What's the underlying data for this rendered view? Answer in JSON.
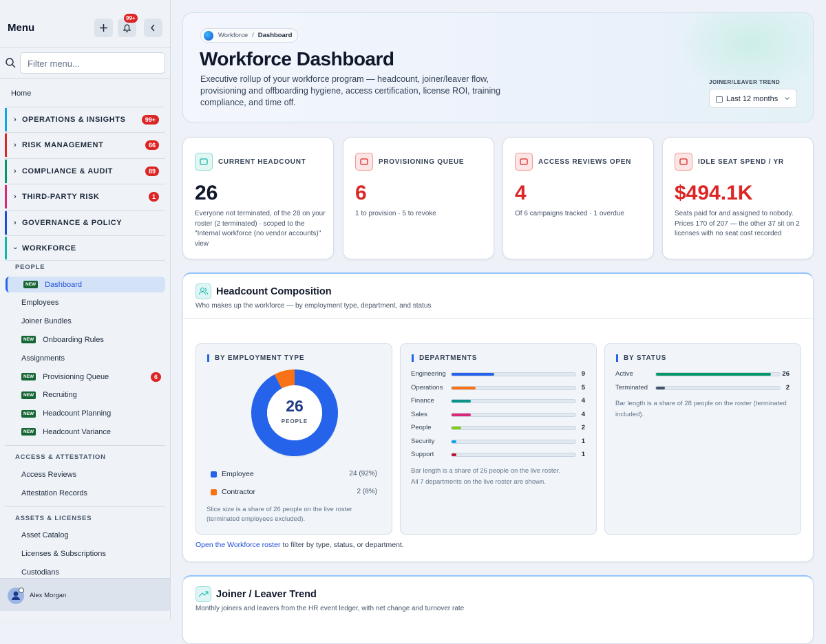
{
  "sidebar": {
    "title": "Menu",
    "notification_badge": "99+",
    "filter_placeholder": "Filter menu...",
    "home": "Home",
    "sections": [
      {
        "label": "OPERATIONS & INSIGHTS",
        "badge": "99+",
        "color": "#0ea5e9"
      },
      {
        "label": "RISK MANAGEMENT",
        "badge": "66",
        "color": "#dc2626"
      },
      {
        "label": "COMPLIANCE & AUDIT",
        "badge": "89",
        "color": "#059669"
      },
      {
        "label": "THIRD-PARTY RISK",
        "badge": "1",
        "color": "#db2777"
      },
      {
        "label": "GOVERNANCE & POLICY",
        "color": "#1d4ed8"
      }
    ],
    "workforce": {
      "label": "WORKFORCE",
      "color": "#14b8a6",
      "groups": [
        {
          "label": "PEOPLE",
          "items": [
            {
              "label": "Dashboard",
              "tag": "NEW",
              "active": true
            },
            {
              "label": "Employees"
            },
            {
              "label": "Joiner Bundles"
            },
            {
              "label": "Onboarding Rules",
              "tag": "NEW"
            },
            {
              "label": "Assignments"
            },
            {
              "label": "Provisioning Queue",
              "tag": "NEW",
              "badge": "6"
            },
            {
              "label": "Recruiting",
              "tag": "NEW"
            },
            {
              "label": "Headcount Planning",
              "tag": "NEW"
            },
            {
              "label": "Headcount Variance",
              "tag": "NEW"
            }
          ]
        },
        {
          "label": "ACCESS & ATTESTATION",
          "items": [
            {
              "label": "Access Reviews"
            },
            {
              "label": "Attestation Records"
            }
          ]
        },
        {
          "label": "ASSETS & LICENSES",
          "items": [
            {
              "label": "Asset Catalog"
            },
            {
              "label": "Licenses & Subscriptions"
            },
            {
              "label": "Custodians"
            }
          ]
        }
      ]
    },
    "user": "Alex Morgan"
  },
  "header": {
    "breadcrumb": [
      "Workforce",
      "Dashboard"
    ],
    "title": "Workforce Dashboard",
    "description": "Executive rollup of your workforce program — headcount, joiner/leaver flow, provisioning and offboarding hygiene, access certification, license ROI, training compliance, and time off.",
    "trend_label": "JOINER/LEAVER TREND",
    "range": "Last 12 months"
  },
  "kpis": [
    {
      "label": "CURRENT HEADCOUNT",
      "value": 26,
      "note": "Everyone not terminated, of the 28 on your roster (2 terminated) · scoped to the \"Internal workforce (no vendor accounts)\" view",
      "color": "#14b8a6",
      "value_color": "#0f172a"
    },
    {
      "label": "PROVISIONING QUEUE",
      "value": 6,
      "note": "1 to provision · 5 to revoke",
      "color": "#dc2626",
      "value_color": "#dc2626"
    },
    {
      "label": "ACCESS REVIEWS OPEN",
      "value": 4,
      "note": "Of 6 campaigns tracked · 1 overdue",
      "color": "#dc2626",
      "value_color": "#dc2626"
    },
    {
      "label": "IDLE SEAT SPEND / YR",
      "value": "$494.1K",
      "note": "Seats paid for and assigned to nobody. Prices 170 of 207 — the other 37 sit on 2 licenses with no seat cost recorded",
      "color": "#dc2626",
      "value_color": "#dc2626"
    }
  ],
  "composition": {
    "title": "Headcount Composition",
    "subtitle": "Who makes up the workforce — by employment type, department, and status",
    "employment": {
      "title": "BY EMPLOYMENT TYPE",
      "center_value": 26,
      "center_label": "PEOPLE",
      "categories": [
        "Employee",
        "Contractor"
      ],
      "values": [
        24,
        2
      ],
      "value_labels": [
        "24 (92%)",
        "2 (8%)"
      ],
      "colors": [
        "#2563eb",
        "#f97316"
      ],
      "note": "Slice size is a share of 26 people on the live roster (terminated employees excluded)."
    },
    "departments": {
      "title": "DEPARTMENTS",
      "categories": [
        "Engineering",
        "Operations",
        "Finance",
        "Sales",
        "People",
        "Security",
        "Support"
      ],
      "values": [
        9,
        5,
        4,
        4,
        2,
        1,
        1
      ],
      "colors": [
        "#2563eb",
        "#f97316",
        "#0d9488",
        "#db2777",
        "#84cc16",
        "#0ea5e9",
        "#be123c"
      ],
      "notes": [
        "Bar length is a share of 26 people on the live roster.",
        "All 7 departments on the live roster are shown."
      ]
    },
    "status": {
      "title": "BY STATUS",
      "categories": [
        "Active",
        "Terminated"
      ],
      "values": [
        26,
        2
      ],
      "colors": [
        "#059669",
        "#475569"
      ],
      "note": "Bar length is a share of 28 people on the roster (terminated included)."
    },
    "footer_link": "Open the Workforce roster",
    "footer_text": "to filter by type, status, or department."
  },
  "trend": {
    "title": "Joiner / Leaver Trend",
    "subtitle": "Monthly joiners and leavers from the HR event ledger, with net change and turnover rate"
  }
}
